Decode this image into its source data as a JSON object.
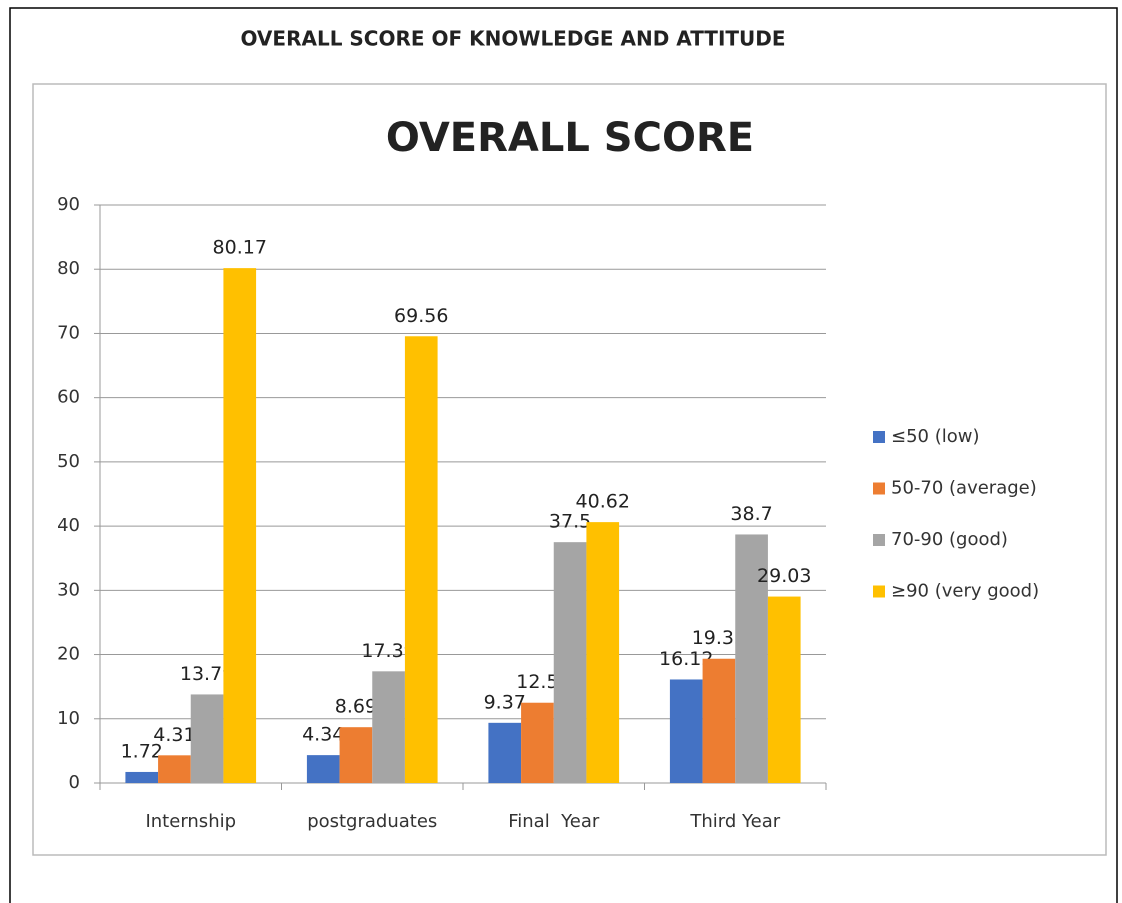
{
  "chart_data": {
    "type": "bar",
    "figure_title": "OVERALL SCORE OF KNOWLEDGE AND ATTITUDE",
    "title": "OVERALL SCORE",
    "categories": [
      "Internship",
      "postgraduates",
      "Final  Year",
      "Third Year"
    ],
    "series": [
      {
        "name": "≤50 (low)",
        "color": "#4472c4",
        "values": [
          1.72,
          4.34,
          9.37,
          16.12
        ]
      },
      {
        "name": "50-70 (average)",
        "color": "#ed7d31",
        "values": [
          4.31,
          8.69,
          12.5,
          19.35
        ]
      },
      {
        "name": "70-90 (good)",
        "color": "#a5a5a5",
        "values": [
          13.79,
          17.39,
          37.5,
          38.7
        ]
      },
      {
        "name": "≥90 (very good)",
        "color": "#ffc000",
        "values": [
          80.17,
          69.56,
          40.62,
          29.03
        ]
      }
    ],
    "ylim": [
      0,
      90
    ],
    "yticks": [
      0,
      10,
      20,
      30,
      40,
      50,
      60,
      70,
      80,
      90
    ],
    "grid": true,
    "legend": "right"
  }
}
